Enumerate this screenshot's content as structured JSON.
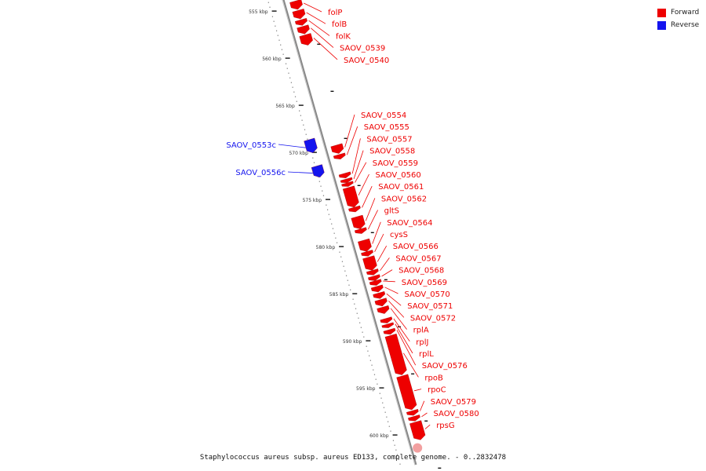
{
  "title": "Staphylococcus aureus subsp. aureus ED133, complete genome. - 0..2832478",
  "legend": [
    {
      "label": "Forward",
      "color": "#ee0000"
    },
    {
      "label": "Reverse",
      "color": "#1414ee"
    }
  ],
  "colors": {
    "forward": "#ee0000",
    "reverse": "#1414ee",
    "backbone": "#888888",
    "highlight": "#f2a0a0"
  },
  "ticks": [
    {
      "kbp": 555,
      "label": "555 kbp"
    },
    {
      "kbp": 560,
      "label": "560 kbp"
    },
    {
      "kbp": 565,
      "label": "565 kbp"
    },
    {
      "kbp": 570,
      "label": "570 kbp"
    },
    {
      "kbp": 575,
      "label": "575 kbp"
    },
    {
      "kbp": 580,
      "label": "580 kbp"
    },
    {
      "kbp": 585,
      "label": "585 kbp"
    },
    {
      "kbp": 590,
      "label": "590 kbp"
    },
    {
      "kbp": 595,
      "label": "595 kbp"
    },
    {
      "kbp": 600,
      "label": "600 kbp"
    }
  ],
  "genes": [
    {
      "name": "folP",
      "strand": "forward",
      "start": 554.6,
      "end": 555.5
    },
    {
      "name": "folB",
      "strand": "forward",
      "start": 555.6,
      "end": 556.5
    },
    {
      "name": "folK",
      "strand": "forward",
      "start": 556.6,
      "end": 557.2
    },
    {
      "name": "SAOV_0539",
      "strand": "forward",
      "start": 557.3,
      "end": 558.1
    },
    {
      "name": "SAOV_0540",
      "strand": "forward",
      "start": 558.2,
      "end": 559.3
    },
    {
      "name": "SAOV_0553c",
      "strand": "reverse",
      "start": 568.6,
      "end": 570.0
    },
    {
      "name": "SAOV_0554",
      "strand": "forward",
      "start": 569.9,
      "end": 570.8
    },
    {
      "name": "SAOV_0555",
      "strand": "forward",
      "start": 570.9,
      "end": 571.4
    },
    {
      "name": "SAOV_0556c",
      "strand": "reverse",
      "start": 571.4,
      "end": 572.6
    },
    {
      "name": "SAOV_0557",
      "strand": "forward",
      "start": 572.9,
      "end": 573.4
    },
    {
      "name": "SAOV_0558",
      "strand": "forward",
      "start": 573.5,
      "end": 573.9
    },
    {
      "name": "SAOV_0559",
      "strand": "forward",
      "start": 573.9,
      "end": 574.3
    },
    {
      "name": "SAOV_0560",
      "strand": "forward",
      "start": 574.4,
      "end": 576.5
    },
    {
      "name": "SAOV_0561",
      "strand": "forward",
      "start": 576.5,
      "end": 577.0
    },
    {
      "name": "SAOV_0562",
      "strand": "forward",
      "start": 577.5,
      "end": 578.8
    },
    {
      "name": "gltS",
      "strand": "forward",
      "start": 578.8,
      "end": 579.3
    },
    {
      "name": "SAOV_0564",
      "strand": "forward",
      "start": 580.0,
      "end": 581.2
    },
    {
      "name": "cysS",
      "strand": "forward",
      "start": 581.2,
      "end": 581.7
    },
    {
      "name": "SAOV_0566",
      "strand": "forward",
      "start": 581.8,
      "end": 583.2
    },
    {
      "name": "SAOV_0567",
      "strand": "forward",
      "start": 583.2,
      "end": 583.7
    },
    {
      "name": "SAOV_0568",
      "strand": "forward",
      "start": 583.8,
      "end": 584.3
    },
    {
      "name": "SAOV_0569",
      "strand": "forward",
      "start": 584.3,
      "end": 584.8
    },
    {
      "name": "SAOV_0570",
      "strand": "forward",
      "start": 584.9,
      "end": 585.5
    },
    {
      "name": "SAOV_0571",
      "strand": "forward",
      "start": 585.6,
      "end": 586.2
    },
    {
      "name": "SAOV_0572",
      "strand": "forward",
      "start": 586.3,
      "end": 587.0
    },
    {
      "name": "rplA",
      "strand": "forward",
      "start": 587.1,
      "end": 587.8
    },
    {
      "name": "rplJ",
      "strand": "forward",
      "start": 588.3,
      "end": 588.8
    },
    {
      "name": "rplL",
      "strand": "forward",
      "start": 588.9,
      "end": 589.3
    },
    {
      "name": "SAOV_0576",
      "strand": "forward",
      "start": 589.5,
      "end": 590.0
    },
    {
      "name": "rpoB",
      "strand": "forward",
      "start": 590.1,
      "end": 594.3
    },
    {
      "name": "rpoC",
      "strand": "forward",
      "start": 594.4,
      "end": 598.0
    },
    {
      "name": "SAOV_0579",
      "strand": "forward",
      "start": 598.1,
      "end": 598.6
    },
    {
      "name": "SAOV_0580",
      "strand": "forward",
      "start": 598.7,
      "end": 599.2
    },
    {
      "name": "rpsG",
      "strand": "forward",
      "start": 599.3,
      "end": 601.2
    }
  ]
}
